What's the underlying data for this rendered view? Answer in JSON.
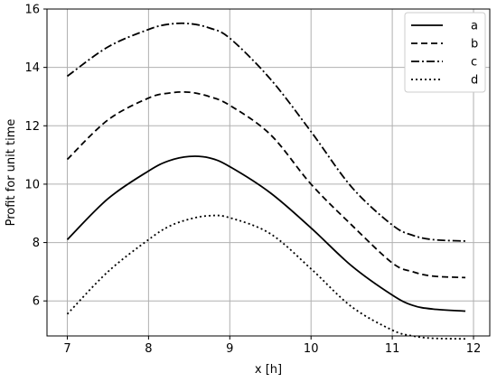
{
  "chart_data": {
    "type": "line",
    "title": "",
    "xlabel": "x [h]",
    "ylabel": "Profit for unit time",
    "xlim": [
      6.75,
      12.2
    ],
    "ylim": [
      4.8,
      16.0
    ],
    "xticks": [
      7,
      8,
      9,
      10,
      11,
      12
    ],
    "yticks": [
      6,
      8,
      10,
      12,
      14,
      16
    ],
    "grid": true,
    "legend_position": "top-right",
    "x": [
      7.0,
      7.5,
      8.0,
      8.25,
      8.5,
      8.75,
      9.0,
      9.5,
      10.0,
      10.5,
      11.0,
      11.25,
      11.5,
      11.9
    ],
    "series": [
      {
        "name": "a",
        "style": "solid",
        "color": "#000000",
        "values": [
          8.1,
          9.5,
          10.45,
          10.8,
          10.95,
          10.9,
          10.6,
          9.7,
          8.5,
          7.2,
          6.2,
          5.85,
          5.72,
          5.65
        ]
      },
      {
        "name": "b",
        "style": "dashed",
        "color": "#000000",
        "values": [
          10.85,
          12.2,
          12.95,
          13.12,
          13.15,
          13.0,
          12.7,
          11.7,
          10.0,
          8.6,
          7.3,
          7.0,
          6.85,
          6.8
        ]
      },
      {
        "name": "c",
        "style": "dashdot",
        "color": "#000000",
        "values": [
          13.7,
          14.7,
          15.3,
          15.48,
          15.5,
          15.35,
          15.0,
          13.6,
          11.8,
          9.9,
          8.6,
          8.25,
          8.1,
          8.05
        ]
      },
      {
        "name": "d",
        "style": "dotted",
        "color": "#000000",
        "values": [
          5.55,
          7.0,
          8.1,
          8.55,
          8.8,
          8.92,
          8.85,
          8.3,
          7.1,
          5.8,
          5.0,
          4.8,
          4.72,
          4.7
        ]
      }
    ]
  }
}
